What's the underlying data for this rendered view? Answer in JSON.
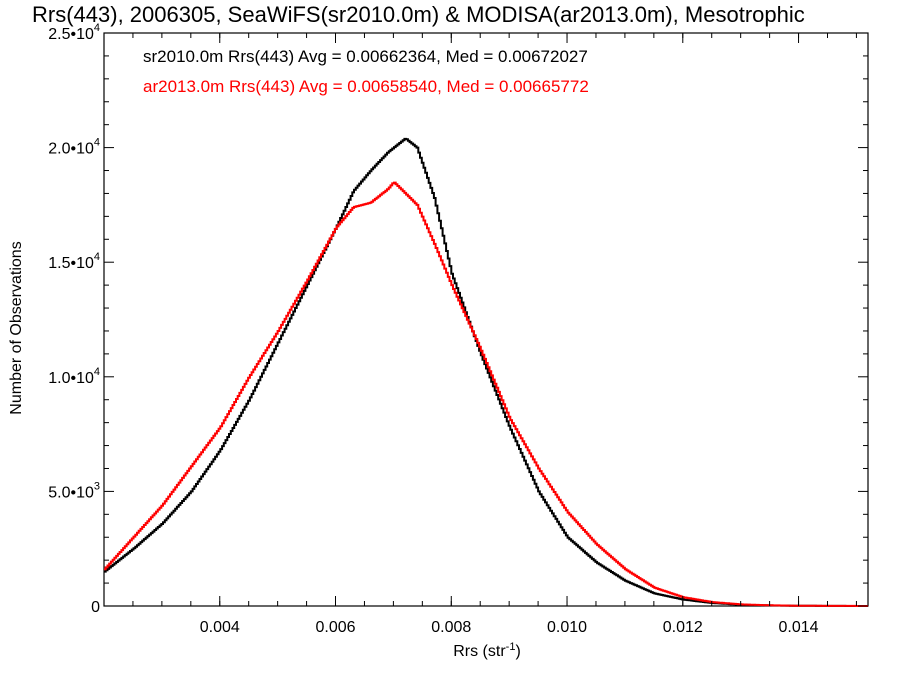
{
  "chart_data": {
    "type": "line",
    "title": "Rrs(443), 2006305, SeaWiFS(sr2010.0m) & MODISA(ar2013.0m), Mesotrophic",
    "xlabel": "Rrs (str",
    "xlabel_sup": "-1",
    "xlabel_end": ")",
    "ylabel": "Number of Observations",
    "xlim": [
      0.002,
      0.0152
    ],
    "ylim": [
      0,
      25000
    ],
    "xticks": [
      {
        "value": 0.004,
        "label": "0.004"
      },
      {
        "value": 0.006,
        "label": "0.006"
      },
      {
        "value": 0.008,
        "label": "0.008"
      },
      {
        "value": 0.01,
        "label": "0.010"
      },
      {
        "value": 0.012,
        "label": "0.012"
      },
      {
        "value": 0.014,
        "label": "0.014"
      }
    ],
    "yticks": [
      {
        "value": 0,
        "mant": "0",
        "exp": ""
      },
      {
        "value": 5000,
        "mant": "5.0•1",
        "exp": "3"
      },
      {
        "value": 10000,
        "mant": "1.0•1",
        "exp": "4"
      },
      {
        "value": 15000,
        "mant": "1.5•1",
        "exp": "4"
      },
      {
        "value": 20000,
        "mant": "2.0•1",
        "exp": "4"
      },
      {
        "value": 25000,
        "mant": "2.5•1",
        "exp": "4"
      }
    ],
    "legend": [
      {
        "text": "sr2010.0m Rrs(443) Avg = 0.00662364, Med = 0.00672027",
        "color": "#000000"
      },
      {
        "text": "ar2013.0m Rrs(443) Avg = 0.00658540, Med = 0.00665772",
        "color": "#ff0000"
      }
    ],
    "series": [
      {
        "color": "#000000",
        "x": [
          0.002,
          0.0025,
          0.003,
          0.0035,
          0.004,
          0.0045,
          0.005,
          0.0055,
          0.006,
          0.0063,
          0.0066,
          0.0069,
          0.0072,
          0.0074,
          0.0077,
          0.008,
          0.0085,
          0.009,
          0.0095,
          0.01,
          0.0105,
          0.011,
          0.0115,
          0.012,
          0.0125,
          0.013,
          0.0135,
          0.014,
          0.0145,
          0.015,
          0.0152
        ],
        "y": [
          1500,
          2500,
          3600,
          5000,
          6800,
          9000,
          11500,
          14000,
          16500,
          18100,
          19000,
          19800,
          20400,
          20000,
          17800,
          14500,
          11000,
          7800,
          5000,
          3000,
          1900,
          1100,
          550,
          280,
          130,
          55,
          25,
          10,
          4,
          1,
          0
        ]
      },
      {
        "color": "#ff0000",
        "x": [
          0.002,
          0.0025,
          0.003,
          0.0035,
          0.004,
          0.0045,
          0.005,
          0.0055,
          0.006,
          0.0063,
          0.0066,
          0.0069,
          0.007,
          0.0072,
          0.0074,
          0.0077,
          0.008,
          0.0085,
          0.009,
          0.0095,
          0.01,
          0.0105,
          0.011,
          0.0115,
          0.012,
          0.0125,
          0.013,
          0.0135,
          0.014,
          0.0145,
          0.015,
          0.0152
        ],
        "y": [
          1600,
          3000,
          4400,
          6100,
          7800,
          10000,
          12000,
          14200,
          16500,
          17400,
          17600,
          18200,
          18500,
          18000,
          17500,
          15800,
          14000,
          11200,
          8200,
          6000,
          4100,
          2700,
          1600,
          800,
          380,
          170,
          70,
          30,
          12,
          5,
          2,
          0
        ]
      }
    ]
  }
}
